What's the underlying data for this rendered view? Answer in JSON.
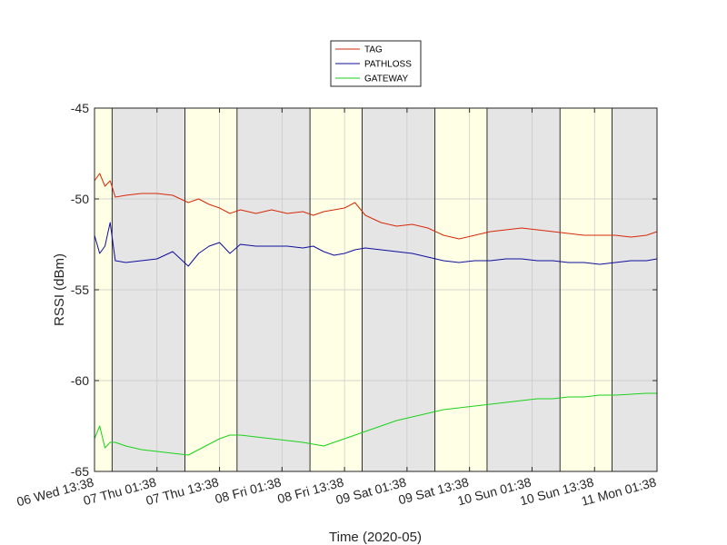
{
  "chart_data": {
    "type": "line",
    "title": "",
    "xlabel": "Time (2020-05)",
    "ylabel": "RSSI (dBm)",
    "ylim": [
      -65,
      -45
    ],
    "yticks": [
      -65,
      -60,
      -55,
      -50,
      -45
    ],
    "xlim": [
      "2020-05-06 13:38",
      "2020-05-11 01:38"
    ],
    "xticks": [
      {
        "t": "2020-05-06 13:38",
        "label": "06 Wed 13:38"
      },
      {
        "t": "2020-05-07 01:38",
        "label": "07 Thu 01:38"
      },
      {
        "t": "2020-05-07 13:38",
        "label": "07 Thu 13:38"
      },
      {
        "t": "2020-05-08 01:38",
        "label": "08 Fri 01:38"
      },
      {
        "t": "2020-05-08 13:38",
        "label": "08 Fri 13:38"
      },
      {
        "t": "2020-05-09 01:38",
        "label": "09 Sat 01:38"
      },
      {
        "t": "2020-05-09 13:38",
        "label": "09 Sat 13:38"
      },
      {
        "t": "2020-05-10 01:38",
        "label": "10 Sun 01:38"
      },
      {
        "t": "2020-05-10 13:38",
        "label": "10 Sun 13:38"
      },
      {
        "t": "2020-05-11 01:38",
        "label": "11 Mon 01:38"
      }
    ],
    "grid": true,
    "legend_position": "top-center",
    "background_bands": [
      {
        "start": "2020-05-06 13:38",
        "end": "2020-05-06 17:00",
        "period": "day",
        "color": "#ffffe5"
      },
      {
        "start": "2020-05-06 17:00",
        "end": "2020-05-07 07:00",
        "period": "night",
        "color": "#e5e5e5"
      },
      {
        "start": "2020-05-07 07:00",
        "end": "2020-05-07 17:00",
        "period": "day",
        "color": "#ffffe5"
      },
      {
        "start": "2020-05-07 17:00",
        "end": "2020-05-08 07:00",
        "period": "night",
        "color": "#e5e5e5"
      },
      {
        "start": "2020-05-08 07:00",
        "end": "2020-05-08 17:00",
        "period": "day",
        "color": "#ffffe5"
      },
      {
        "start": "2020-05-08 17:00",
        "end": "2020-05-09 07:00",
        "period": "night",
        "color": "#e5e5e5"
      },
      {
        "start": "2020-05-09 07:00",
        "end": "2020-05-09 17:00",
        "period": "day",
        "color": "#ffffe5"
      },
      {
        "start": "2020-05-09 17:00",
        "end": "2020-05-10 07:00",
        "period": "night",
        "color": "#e5e5e5"
      },
      {
        "start": "2020-05-10 07:00",
        "end": "2020-05-10 17:00",
        "period": "day",
        "color": "#ffffe5"
      },
      {
        "start": "2020-05-10 17:00",
        "end": "2020-05-11 01:38",
        "period": "night",
        "color": "#e5e5e5"
      }
    ],
    "series": [
      {
        "name": "TAG",
        "color": "#d62a0a",
        "x": [
          "2020-05-06 13:38",
          "2020-05-06 14:38",
          "2020-05-06 15:38",
          "2020-05-06 16:38",
          "2020-05-06 17:38",
          "2020-05-06 19:38",
          "2020-05-06 22:38",
          "2020-05-07 01:38",
          "2020-05-07 04:38",
          "2020-05-07 07:38",
          "2020-05-07 09:38",
          "2020-05-07 11:38",
          "2020-05-07 13:38",
          "2020-05-07 15:38",
          "2020-05-07 17:38",
          "2020-05-07 20:38",
          "2020-05-07 23:38",
          "2020-05-08 02:38",
          "2020-05-08 05:38",
          "2020-05-08 07:38",
          "2020-05-08 09:38",
          "2020-05-08 11:38",
          "2020-05-08 13:38",
          "2020-05-08 15:38",
          "2020-05-08 17:38",
          "2020-05-08 20:38",
          "2020-05-08 23:38",
          "2020-05-09 02:38",
          "2020-05-09 05:38",
          "2020-05-09 08:38",
          "2020-05-09 11:38",
          "2020-05-09 14:38",
          "2020-05-09 17:38",
          "2020-05-09 20:38",
          "2020-05-09 23:38",
          "2020-05-10 02:38",
          "2020-05-10 05:38",
          "2020-05-10 08:38",
          "2020-05-10 11:38",
          "2020-05-10 14:38",
          "2020-05-10 17:38",
          "2020-05-10 20:38",
          "2020-05-10 23:38",
          "2020-05-11 01:38"
        ],
        "y": [
          -49.0,
          -48.6,
          -49.3,
          -49.0,
          -49.9,
          -49.8,
          -49.7,
          -49.7,
          -49.8,
          -50.2,
          -50.0,
          -50.3,
          -50.5,
          -50.8,
          -50.6,
          -50.8,
          -50.6,
          -50.8,
          -50.7,
          -50.9,
          -50.7,
          -50.6,
          -50.5,
          -50.2,
          -50.9,
          -51.3,
          -51.5,
          -51.4,
          -51.6,
          -52.0,
          -52.2,
          -52.0,
          -51.8,
          -51.7,
          -51.6,
          -51.7,
          -51.8,
          -51.9,
          -52.0,
          -52.0,
          -52.0,
          -52.1,
          -52.0,
          -51.8
        ]
      },
      {
        "name": "PATHLOSS",
        "color": "#0f0f9c",
        "x": [
          "2020-05-06 13:38",
          "2020-05-06 14:38",
          "2020-05-06 15:38",
          "2020-05-06 16:38",
          "2020-05-06 17:38",
          "2020-05-06 19:38",
          "2020-05-06 22:38",
          "2020-05-07 01:38",
          "2020-05-07 04:38",
          "2020-05-07 07:38",
          "2020-05-07 09:38",
          "2020-05-07 11:38",
          "2020-05-07 13:38",
          "2020-05-07 15:38",
          "2020-05-07 17:38",
          "2020-05-07 20:38",
          "2020-05-07 23:38",
          "2020-05-08 02:38",
          "2020-05-08 05:38",
          "2020-05-08 07:38",
          "2020-05-08 09:38",
          "2020-05-08 11:38",
          "2020-05-08 13:38",
          "2020-05-08 15:38",
          "2020-05-08 17:38",
          "2020-05-08 20:38",
          "2020-05-08 23:38",
          "2020-05-09 02:38",
          "2020-05-09 05:38",
          "2020-05-09 08:38",
          "2020-05-09 11:38",
          "2020-05-09 14:38",
          "2020-05-09 17:38",
          "2020-05-09 20:38",
          "2020-05-09 23:38",
          "2020-05-10 02:38",
          "2020-05-10 05:38",
          "2020-05-10 08:38",
          "2020-05-10 11:38",
          "2020-05-10 14:38",
          "2020-05-10 17:38",
          "2020-05-10 20:38",
          "2020-05-10 23:38",
          "2020-05-11 01:38"
        ],
        "y": [
          -52.0,
          -53.0,
          -52.6,
          -51.3,
          -53.4,
          -53.5,
          -53.4,
          -53.3,
          -52.9,
          -53.7,
          -53.0,
          -52.6,
          -52.4,
          -53.0,
          -52.5,
          -52.6,
          -52.6,
          -52.6,
          -52.7,
          -52.6,
          -52.9,
          -53.1,
          -53.0,
          -52.8,
          -52.7,
          -52.8,
          -52.9,
          -53.0,
          -53.2,
          -53.4,
          -53.5,
          -53.4,
          -53.4,
          -53.3,
          -53.3,
          -53.4,
          -53.4,
          -53.5,
          -53.5,
          -53.6,
          -53.5,
          -53.4,
          -53.4,
          -53.3
        ]
      },
      {
        "name": "GATEWAY",
        "color": "#1bd21b",
        "x": [
          "2020-05-06 13:38",
          "2020-05-06 14:38",
          "2020-05-06 15:38",
          "2020-05-06 16:38",
          "2020-05-06 17:38",
          "2020-05-06 19:38",
          "2020-05-06 22:38",
          "2020-05-07 01:38",
          "2020-05-07 04:38",
          "2020-05-07 07:38",
          "2020-05-07 09:38",
          "2020-05-07 11:38",
          "2020-05-07 13:38",
          "2020-05-07 15:38",
          "2020-05-07 17:38",
          "2020-05-07 20:38",
          "2020-05-07 23:38",
          "2020-05-08 02:38",
          "2020-05-08 05:38",
          "2020-05-08 07:38",
          "2020-05-08 09:38",
          "2020-05-08 11:38",
          "2020-05-08 13:38",
          "2020-05-08 15:38",
          "2020-05-08 17:38",
          "2020-05-08 20:38",
          "2020-05-08 23:38",
          "2020-05-09 02:38",
          "2020-05-09 05:38",
          "2020-05-09 08:38",
          "2020-05-09 11:38",
          "2020-05-09 14:38",
          "2020-05-09 17:38",
          "2020-05-09 20:38",
          "2020-05-09 23:38",
          "2020-05-10 02:38",
          "2020-05-10 05:38",
          "2020-05-10 08:38",
          "2020-05-10 11:38",
          "2020-05-10 14:38",
          "2020-05-10 17:38",
          "2020-05-10 20:38",
          "2020-05-10 23:38",
          "2020-05-11 01:38"
        ],
        "y": [
          -63.2,
          -62.5,
          -63.7,
          -63.4,
          -63.4,
          -63.6,
          -63.8,
          -63.9,
          -64.0,
          -64.1,
          -63.8,
          -63.5,
          -63.2,
          -63.0,
          -63.0,
          -63.1,
          -63.2,
          -63.3,
          -63.4,
          -63.5,
          -63.6,
          -63.4,
          -63.2,
          -63.0,
          -62.8,
          -62.5,
          -62.2,
          -62.0,
          -61.8,
          -61.6,
          -61.5,
          -61.4,
          -61.3,
          -61.2,
          -61.1,
          -61.0,
          -61.0,
          -60.9,
          -60.9,
          -60.8,
          -60.8,
          -60.75,
          -60.7,
          -60.7
        ]
      }
    ]
  }
}
